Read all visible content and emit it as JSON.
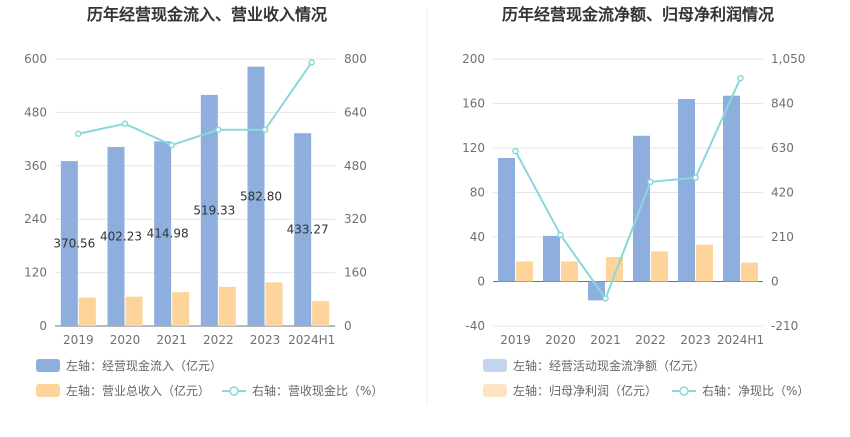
{
  "chart_data": [
    {
      "type": "bar",
      "title": "历年经营现金流入、营业收入情况",
      "categories": [
        "2019",
        "2020",
        "2021",
        "2022",
        "2023",
        "2024H1"
      ],
      "left_axis": {
        "min": 0,
        "max": 600,
        "ticks": [
          "0",
          "120",
          "240",
          "360",
          "480",
          "600"
        ]
      },
      "right_axis": {
        "min": 0,
        "max": 800,
        "ticks": [
          "0",
          "160",
          "320",
          "480",
          "640",
          "800"
        ]
      },
      "series": [
        {
          "name": "左轴：经营现金流入（亿元）",
          "axis": "left",
          "kind": "bar",
          "color": "#8eaedd",
          "values": [
            370.56,
            402.23,
            414.98,
            519.33,
            582.8,
            433.27
          ],
          "labels": [
            "370.56",
            "402.23",
            "414.98",
            "519.33",
            "582.80",
            "433.27"
          ]
        },
        {
          "name": "左轴：营业总收入（亿元）",
          "axis": "left",
          "kind": "bar",
          "color": "#fdd59b",
          "values": [
            64,
            66,
            76,
            88,
            98,
            56
          ]
        },
        {
          "name": "右轴：营收现金比（%）",
          "axis": "right",
          "kind": "line",
          "color": "#88d8dc",
          "values": [
            576,
            606,
            542,
            588,
            588,
            790
          ]
        }
      ]
    },
    {
      "type": "bar",
      "title": "历年经营现金流净额、归母净利润情况",
      "categories": [
        "2019",
        "2020",
        "2021",
        "2022",
        "2023",
        "2024H1"
      ],
      "left_axis": {
        "min": -40,
        "max": 200,
        "ticks": [
          "-40",
          "0",
          "40",
          "80",
          "120",
          "160",
          "200"
        ]
      },
      "right_axis": {
        "min": -210,
        "max": 1050,
        "ticks": [
          "-210",
          "0",
          "210",
          "420",
          "630",
          "840",
          "1,050"
        ]
      },
      "series": [
        {
          "name": "左轴：经营活动现金流净额（亿元）",
          "axis": "left",
          "kind": "bar",
          "color": "#8eaedd",
          "legend_color": "#c2d4ee",
          "values": [
            111,
            41,
            -17,
            131,
            164,
            167
          ]
        },
        {
          "name": "左轴：归母净利润（亿元）",
          "axis": "left",
          "kind": "bar",
          "color": "#fdd59b",
          "legend_color": "#fde4c3",
          "values": [
            18,
            18,
            22,
            27,
            33,
            17
          ]
        },
        {
          "name": "右轴：净现比（%）",
          "axis": "right",
          "kind": "line",
          "color": "#88d8dc",
          "values": [
            615,
            220,
            -80,
            470,
            490,
            960
          ]
        }
      ]
    }
  ]
}
